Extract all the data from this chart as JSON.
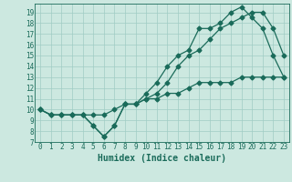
{
  "xlabel": "Humidex (Indice chaleur)",
  "bg_color": "#cce8e0",
  "line_color": "#1a6b5a",
  "grid_color": "#a0ccc4",
  "xlim": [
    -0.5,
    23.5
  ],
  "ylim": [
    7,
    19.8
  ],
  "yticks": [
    7,
    8,
    9,
    10,
    11,
    12,
    13,
    14,
    15,
    16,
    17,
    18,
    19
  ],
  "xticks": [
    0,
    1,
    2,
    3,
    4,
    5,
    6,
    7,
    8,
    9,
    10,
    11,
    12,
    13,
    14,
    15,
    16,
    17,
    18,
    19,
    20,
    21,
    22,
    23
  ],
  "line1_x": [
    0,
    1,
    2,
    3,
    4,
    5,
    6,
    7,
    8,
    9,
    10,
    11,
    12,
    13,
    14,
    15,
    16,
    17,
    18,
    19,
    20,
    21,
    22,
    23
  ],
  "line1_y": [
    10,
    9.5,
    9.5,
    9.5,
    9.5,
    8.5,
    7.5,
    8.5,
    10.5,
    10.5,
    11.5,
    12.5,
    14,
    15,
    15.5,
    17.5,
    17.5,
    18,
    19,
    19.5,
    18.5,
    17.5,
    15,
    13
  ],
  "line2_x": [
    0,
    1,
    2,
    3,
    4,
    5,
    6,
    7,
    8,
    9,
    10,
    11,
    12,
    13,
    14,
    15,
    16,
    17,
    18,
    19,
    20,
    21,
    22,
    23
  ],
  "line2_y": [
    10,
    9.5,
    9.5,
    9.5,
    9.5,
    8.5,
    7.5,
    8.5,
    10.5,
    10.5,
    11,
    11.5,
    12.5,
    14,
    15,
    15.5,
    16.5,
    17.5,
    18,
    18.5,
    19,
    19,
    17.5,
    15
  ],
  "line3_x": [
    0,
    1,
    2,
    3,
    4,
    5,
    6,
    7,
    8,
    9,
    10,
    11,
    12,
    13,
    14,
    15,
    16,
    17,
    18,
    19,
    20,
    21,
    22,
    23
  ],
  "line3_y": [
    10,
    9.5,
    9.5,
    9.5,
    9.5,
    9.5,
    9.5,
    10,
    10.5,
    10.5,
    11,
    11,
    11.5,
    11.5,
    12,
    12.5,
    12.5,
    12.5,
    12.5,
    13,
    13,
    13,
    13,
    13
  ],
  "marker_size": 2.5,
  "line_width": 0.9,
  "tick_fontsize": 5.5,
  "xlabel_fontsize": 7
}
